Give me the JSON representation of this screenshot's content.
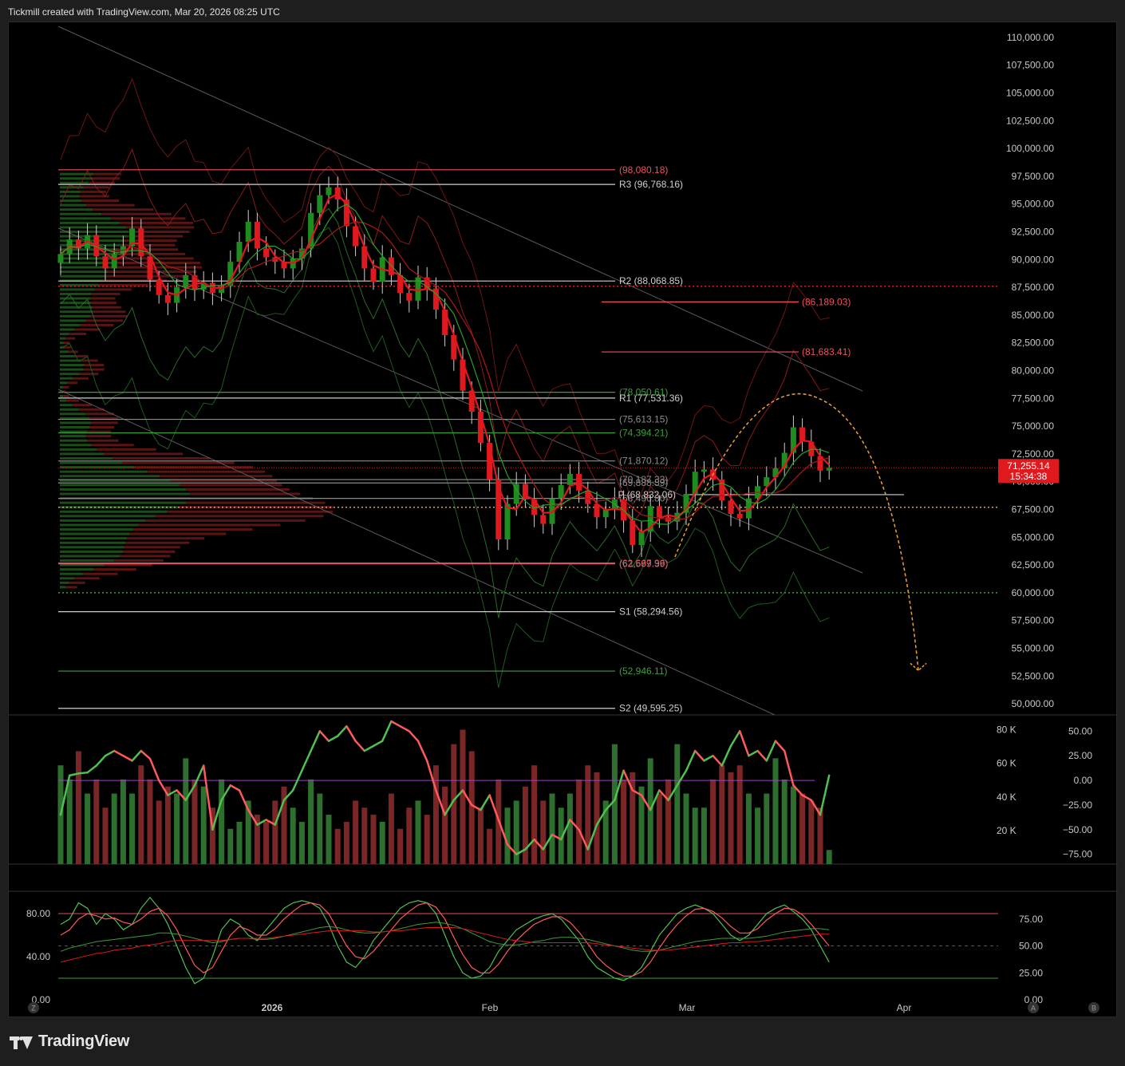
{
  "header": {
    "text": "Tickmill created with TradingView.com, Mar 20, 2026 08:25 UTC"
  },
  "footer": {
    "brand": "TradingView"
  },
  "icons": [
    "tradingview-logo-icon"
  ],
  "colors": {
    "bull": "#1e8c1e",
    "bear": "#e0191e",
    "price_line": "#e0191e",
    "projection": "#f0a030"
  },
  "chart_data": [
    {
      "type": "candlestick",
      "title": "",
      "price_axis_ticks": [
        "110,000.00",
        "107,500.00",
        "105,000.00",
        "102,500.00",
        "100,000.00",
        "97,500.00",
        "95,000.00",
        "92,500.00",
        "90,000.00",
        "87,500.00",
        "85,000.00",
        "82,500.00",
        "80,000.00",
        "77,500.00",
        "75,000.00",
        "72,500.00",
        "70,000.00",
        "67,500.00",
        "65,000.00",
        "62,500.00",
        "60,000.00",
        "57,500.00",
        "55,000.00",
        "52,500.00",
        "50,000.00"
      ],
      "ylim": [
        49000,
        111000
      ],
      "time_axis_labels": [
        "2026",
        "Feb",
        "Mar",
        "Apr"
      ],
      "current_price": {
        "value": "71,255.14",
        "countdown": "15:34:38"
      },
      "close_path": [
        90500,
        91800,
        91000,
        92200,
        90300,
        89200,
        90500,
        91200,
        92800,
        90300,
        88200,
        86800,
        86100,
        87500,
        88600,
        87300,
        87900,
        87000,
        87600,
        89800,
        91600,
        93400,
        91000,
        90200,
        89800,
        89200,
        90100,
        91000,
        94200,
        95800,
        96500,
        95400,
        93000,
        91200,
        89200,
        88000,
        90200,
        88600,
        87000,
        86300,
        88400,
        87400,
        85500,
        83200,
        81000,
        78200,
        76300,
        73500,
        70200,
        64800,
        68000,
        69800,
        68400,
        67000,
        66200,
        68500,
        69700,
        70700,
        69200,
        68000,
        66800,
        67500,
        68400,
        66500,
        64300,
        65500,
        67800,
        66800,
        66400,
        67200,
        68900,
        70900,
        71100,
        70200,
        68300,
        67100,
        66700,
        68500,
        69600,
        70400,
        71200,
        72600,
        74900,
        73600,
        72300,
        71000,
        71255
      ],
      "levels": [
        {
          "label": "(98,080.18)",
          "value": 98080.18,
          "color": "#f0505a"
        },
        {
          "label": "R3 (96,768.16)",
          "value": 96768.16,
          "color": "#cfcfcf"
        },
        {
          "label": "R2 (88,068.85)",
          "value": 88068.85,
          "color": "#cfcfcf"
        },
        {
          "label": "(86,189.03)",
          "value": 86189.03,
          "color": "#f0505a"
        },
        {
          "label": "(81,683.41)",
          "value": 81683.41,
          "color": "#f0505a"
        },
        {
          "label": "(78,050.61)",
          "value": 78050.61,
          "color": "#3aa03a"
        },
        {
          "label": "R1 (77,531.36)",
          "value": 77531.36,
          "color": "#cfcfcf"
        },
        {
          "label": "(75,613.15)",
          "value": 75613.15,
          "color": "#8c8c8c"
        },
        {
          "label": "(74,394.21)",
          "value": 74394.21,
          "color": "#3aa03a"
        },
        {
          "label": "(71,870.12)",
          "value": 71870.12,
          "color": "#8c8c8c"
        },
        {
          "label": "(70,187.33)",
          "value": 70187.33,
          "color": "#8c8c8c"
        },
        {
          "label": "(69,888.59)",
          "value": 69888.59,
          "color": "#8c8c8c"
        },
        {
          "label": "P (68,832.06)",
          "value": 68832.06,
          "color": "#cfcfcf"
        },
        {
          "label": "(68,496.80)",
          "value": 68496.8,
          "color": "#8c8c8c"
        },
        {
          "label": "(62,667.96)",
          "value": 62667.96,
          "color": "#8c8c8c"
        },
        {
          "label": "(62,599.39)",
          "value": 62599.39,
          "color": "#f0505a"
        },
        {
          "label": "S1 (58,294.56)",
          "value": 58294.56,
          "color": "#cfcfcf"
        },
        {
          "label": "(52,946.11)",
          "value": 52946.11,
          "color": "#3aa03a"
        },
        {
          "label": "S2 (49,595.25)",
          "value": 49595.25,
          "color": "#cfcfcf"
        }
      ],
      "dotted_levels": [
        {
          "value": 87600,
          "color": "#e0191e"
        },
        {
          "value": 67700,
          "color": "#f0a030"
        },
        {
          "value": 60000,
          "color": "#3aa03a"
        }
      ],
      "projection": {
        "peak": 77500,
        "target": 53000
      }
    },
    {
      "type": "bar+line",
      "volume_axis_ticks": [
        "80 K",
        "60 K",
        "40 K",
        "20 K"
      ],
      "oscillator_axis_ticks": [
        "50.00",
        "25.00",
        "0.00",
        "−25.00",
        "−50.00",
        "−75.00"
      ],
      "oscillator_zero": 0,
      "volume_values": [
        14,
        12,
        16,
        10,
        12,
        8,
        10,
        12,
        10,
        14,
        12,
        9,
        11,
        10,
        15,
        12,
        11,
        8,
        12,
        5,
        6,
        9,
        7,
        6,
        9,
        11,
        8,
        6,
        12,
        10,
        7,
        5,
        6,
        9,
        8,
        7,
        6,
        10,
        5,
        8,
        9,
        7,
        14,
        11,
        17,
        22,
        16,
        8,
        5,
        12,
        8,
        9,
        11,
        14,
        9,
        10,
        8,
        10,
        12,
        14,
        13,
        9,
        17,
        12,
        13,
        11,
        15,
        10,
        12,
        17,
        10,
        8,
        8,
        12,
        14,
        13,
        14,
        10,
        8,
        10,
        15,
        12,
        11,
        10,
        9,
        8,
        2
      ],
      "oscillator_values": [
        -35,
        5,
        7,
        8,
        15,
        25,
        30,
        25,
        20,
        30,
        22,
        0,
        -15,
        -10,
        -20,
        -5,
        15,
        -50,
        -20,
        -5,
        -10,
        -30,
        -45,
        -40,
        -45,
        -20,
        -10,
        10,
        30,
        50,
        40,
        45,
        55,
        40,
        30,
        35,
        40,
        60,
        55,
        50,
        40,
        20,
        -10,
        -35,
        -20,
        -10,
        -25,
        -30,
        -15,
        -40,
        -65,
        -75,
        -70,
        -60,
        -70,
        -55,
        -60,
        -40,
        -50,
        -70,
        -45,
        -30,
        -20,
        10,
        -10,
        -15,
        -30,
        -10,
        -20,
        -5,
        10,
        30,
        20,
        25,
        15,
        35,
        50,
        25,
        30,
        20,
        40,
        30,
        -5,
        -15,
        -20,
        -35,
        5
      ]
    },
    {
      "type": "line",
      "left_axis_ticks": [
        "80.00",
        "40.00",
        "0.00"
      ],
      "right_axis_ticks": [
        "75.00",
        "50.00",
        "25.00",
        "0.00"
      ],
      "upper_band": 80,
      "middle_band": 50,
      "lower_band": 20,
      "series_k": [
        70,
        75,
        90,
        85,
        70,
        80,
        75,
        65,
        70,
        85,
        95,
        85,
        70,
        50,
        30,
        15,
        20,
        40,
        65,
        75,
        70,
        60,
        55,
        65,
        75,
        85,
        90,
        92,
        90,
        85,
        70,
        50,
        35,
        30,
        40,
        55,
        65,
        75,
        85,
        90,
        92,
        90,
        80,
        60,
        40,
        25,
        20,
        22,
        30,
        45,
        55,
        65,
        70,
        75,
        78,
        80,
        75,
        65,
        55,
        40,
        30,
        25,
        20,
        18,
        22,
        30,
        45,
        60,
        70,
        80,
        85,
        88,
        85,
        80,
        70,
        60,
        55,
        60,
        70,
        80,
        85,
        88,
        82,
        75,
        65,
        50,
        35
      ],
      "series_d": [
        60,
        65,
        75,
        80,
        78,
        75,
        76,
        72,
        70,
        75,
        82,
        85,
        78,
        65,
        48,
        32,
        25,
        30,
        45,
        60,
        68,
        65,
        60,
        60,
        66,
        75,
        82,
        88,
        90,
        88,
        80,
        65,
        50,
        40,
        38,
        45,
        55,
        65,
        75,
        82,
        88,
        90,
        86,
        75,
        58,
        42,
        30,
        25,
        25,
        33,
        45,
        55,
        63,
        70,
        74,
        77,
        77,
        72,
        63,
        52,
        40,
        32,
        26,
        22,
        22,
        26,
        35,
        48,
        60,
        70,
        78,
        84,
        85,
        82,
        76,
        68,
        62,
        62,
        66,
        74,
        80,
        85,
        84,
        79,
        70,
        60,
        50
      ],
      "series_slow_a": [
        45,
        48,
        50,
        52,
        54,
        55,
        56,
        57,
        58,
        59,
        60,
        62,
        62,
        61,
        59,
        57,
        55,
        53,
        54,
        56,
        57,
        57,
        56,
        56,
        57,
        59,
        61,
        63,
        65,
        67,
        68,
        67,
        65,
        63,
        62,
        62,
        63,
        64,
        66,
        68,
        70,
        71,
        72,
        71,
        69,
        66,
        62,
        58,
        54,
        52,
        51,
        51,
        52,
        54,
        55,
        57,
        58,
        58,
        57,
        56,
        54,
        52,
        50,
        48,
        46,
        45,
        45,
        46,
        48,
        50,
        52,
        54,
        55,
        56,
        57,
        57,
        57,
        57,
        58,
        59,
        61,
        63,
        64,
        65,
        66,
        66,
        65
      ],
      "series_slow_b": [
        35,
        37,
        39,
        41,
        43,
        44,
        46,
        47,
        48,
        50,
        51,
        52,
        54,
        55,
        55,
        55,
        55,
        55,
        55,
        56,
        57,
        57,
        57,
        57,
        58,
        59,
        60,
        61,
        62,
        63,
        64,
        64,
        64,
        64,
        64,
        63,
        63,
        64,
        64,
        65,
        66,
        67,
        67,
        67,
        67,
        66,
        64,
        62,
        60,
        58,
        56,
        55,
        54,
        53,
        53,
        53,
        53,
        53,
        53,
        53,
        52,
        51,
        50,
        49,
        48,
        47,
        46,
        46,
        46,
        47,
        48,
        49,
        50,
        51,
        52,
        53,
        53,
        54,
        54,
        55,
        56,
        57,
        58,
        59,
        60,
        61,
        61
      ]
    }
  ]
}
